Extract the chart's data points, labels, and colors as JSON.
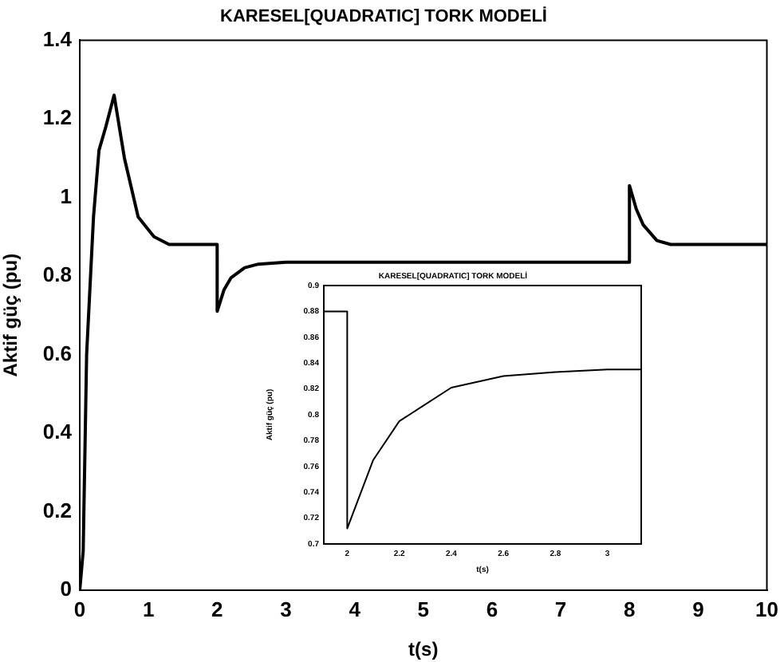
{
  "chart_data": [
    {
      "type": "line",
      "title": "KARESEL[QUADRATIC] TORK MODELİ",
      "xlabel": "t(s)",
      "ylabel": "Aktif güç (pu)",
      "xlim": [
        0,
        10
      ],
      "ylim": [
        0,
        1.4
      ],
      "xticks": [
        0,
        1,
        2,
        3,
        4,
        5,
        6,
        7,
        8,
        9,
        10
      ],
      "yticks": [
        0,
        0.2,
        0.4,
        0.6,
        0.8,
        1,
        1.2,
        1.4
      ],
      "grid": false,
      "legend": false,
      "marker": "none",
      "line_style": "solid",
      "series": [
        {
          "color": "#000000",
          "x": [
            0,
            0.05,
            0.1,
            0.2,
            0.28,
            0.38,
            0.5,
            0.65,
            0.85,
            1.08,
            1.3,
            1.6,
            2,
            2,
            2.1,
            2.2,
            2.4,
            2.6,
            3,
            5,
            8,
            8,
            8.1,
            8.2,
            8.4,
            8.6,
            10
          ],
          "values": [
            0,
            0.1,
            0.6,
            0.95,
            1.12,
            1.18,
            1.26,
            1.1,
            0.95,
            0.9,
            0.88,
            0.88,
            0.88,
            0.71,
            0.765,
            0.795,
            0.821,
            0.83,
            0.835,
            0.835,
            0.835,
            1.03,
            0.97,
            0.93,
            0.89,
            0.88,
            0.88
          ]
        }
      ]
    },
    {
      "type": "line",
      "title": "KARESEL[QUADRATIC] TORK MODELİ",
      "xlabel": "t(s)",
      "ylabel": "Aktif güç (pu)",
      "xlim": [
        1.91,
        3.13
      ],
      "ylim": [
        0.7,
        0.9
      ],
      "xticks": [
        2,
        2.2,
        2.4,
        2.6,
        2.8,
        3
      ],
      "yticks": [
        0.7,
        0.72,
        0.74,
        0.76,
        0.78,
        0.8,
        0.82,
        0.84,
        0.86,
        0.88,
        0.9
      ],
      "grid": false,
      "legend": false,
      "marker": "none",
      "line_style": "solid",
      "series": [
        {
          "color": "#000000",
          "x": [
            1.91,
            2,
            2,
            2.1,
            2.2,
            2.4,
            2.6,
            2.8,
            3,
            3.13
          ],
          "values": [
            0.88,
            0.88,
            0.712,
            0.765,
            0.795,
            0.821,
            0.83,
            0.833,
            0.835,
            0.835
          ]
        }
      ]
    }
  ]
}
